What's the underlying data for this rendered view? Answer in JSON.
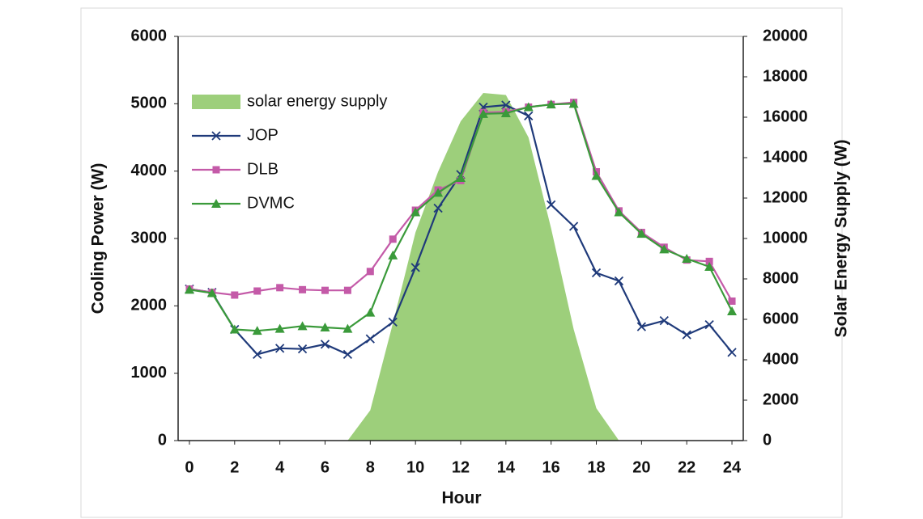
{
  "chart_data": {
    "type": "line",
    "x_label": "Hour",
    "y_label": "Cooling Power (W)",
    "y2_label": "Solar Energy Supply (W)",
    "x": [
      0,
      1,
      2,
      3,
      4,
      5,
      6,
      7,
      8,
      9,
      10,
      11,
      12,
      13,
      14,
      15,
      16,
      17,
      18,
      19,
      20,
      21,
      22,
      23,
      24
    ],
    "xlim": [
      -0.5,
      24.5
    ],
    "xticks": [
      0,
      2,
      4,
      6,
      8,
      10,
      12,
      14,
      16,
      18,
      20,
      22,
      24
    ],
    "ylim": [
      0,
      6000
    ],
    "yticks": [
      0,
      1000,
      2000,
      3000,
      4000,
      5000,
      6000
    ],
    "y2lim": [
      0,
      20000
    ],
    "y2ticks": [
      0,
      2000,
      4000,
      6000,
      8000,
      10000,
      12000,
      14000,
      16000,
      18000,
      20000
    ],
    "legend": "upper left",
    "series": [
      {
        "name": "solar energy supply",
        "type": "area",
        "axis": "y2",
        "color": "#9dcf7b",
        "values": [
          0,
          0,
          0,
          0,
          0,
          0,
          0,
          0,
          1500,
          5800,
          10300,
          13300,
          15800,
          17200,
          17100,
          15000,
          10500,
          5500,
          1600,
          0,
          0,
          0,
          0,
          0,
          0
        ]
      },
      {
        "name": "JOP",
        "color": "#1f3a7a",
        "marker": "x",
        "values": [
          2250,
          2200,
          1650,
          1280,
          1370,
          1360,
          1430,
          1280,
          1510,
          1760,
          2570,
          3450,
          3950,
          4950,
          4980,
          4820,
          3500,
          3180,
          2490,
          2370,
          1690,
          1780,
          1570,
          1720,
          1310
        ]
      },
      {
        "name": "DLB",
        "color": "#c45aa8",
        "marker": "square",
        "values": [
          2250,
          2200,
          2160,
          2220,
          2270,
          2240,
          2230,
          2230,
          2510,
          2990,
          3420,
          3720,
          3860,
          4870,
          4880,
          4950,
          4990,
          5020,
          3990,
          3410,
          3090,
          2870,
          2680,
          2660,
          2070
        ]
      },
      {
        "name": "DVMC",
        "color": "#3a9a3a",
        "marker": "triangle",
        "values": [
          2240,
          2190,
          1650,
          1630,
          1660,
          1700,
          1680,
          1660,
          1900,
          2750,
          3390,
          3680,
          3900,
          4850,
          4860,
          4950,
          4990,
          5000,
          3930,
          3390,
          3070,
          2840,
          2700,
          2580,
          1920
        ]
      }
    ]
  }
}
